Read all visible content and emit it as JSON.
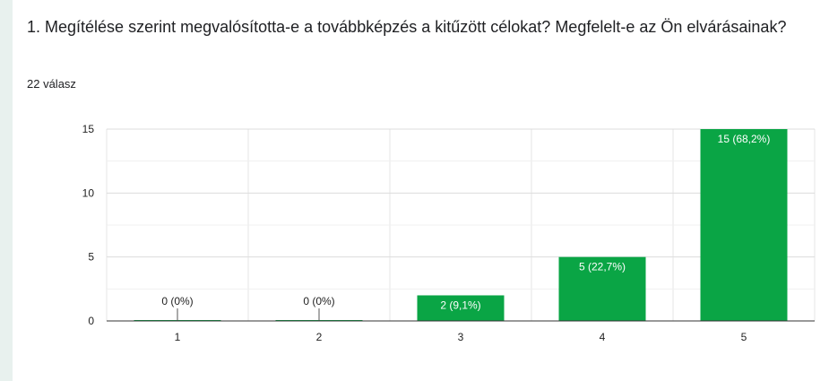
{
  "question": {
    "title": "1. Megítélése szerint megvalósította-e a továbbképzés a kitűzött célokat? Megfelelt-e az Ön elvárásainak?",
    "response_count": "22 válasz"
  },
  "colors": {
    "bar": "#0aa545",
    "background": "#e8f1ee",
    "gridline": "#e6e6e6",
    "axis": "#333333"
  },
  "chart_data": {
    "type": "bar",
    "categories": [
      "1",
      "2",
      "3",
      "4",
      "5"
    ],
    "values": [
      0,
      0,
      2,
      5,
      15
    ],
    "data_labels": [
      "0 (0%)",
      "0 (0%)",
      "2 (9,1%)",
      "5 (22,7%)",
      "15 (68,2%)"
    ],
    "y_ticks": [
      0,
      5,
      10,
      15
    ],
    "ylim": [
      0,
      15
    ],
    "grid": true,
    "title": "",
    "xlabel": "",
    "ylabel": ""
  }
}
